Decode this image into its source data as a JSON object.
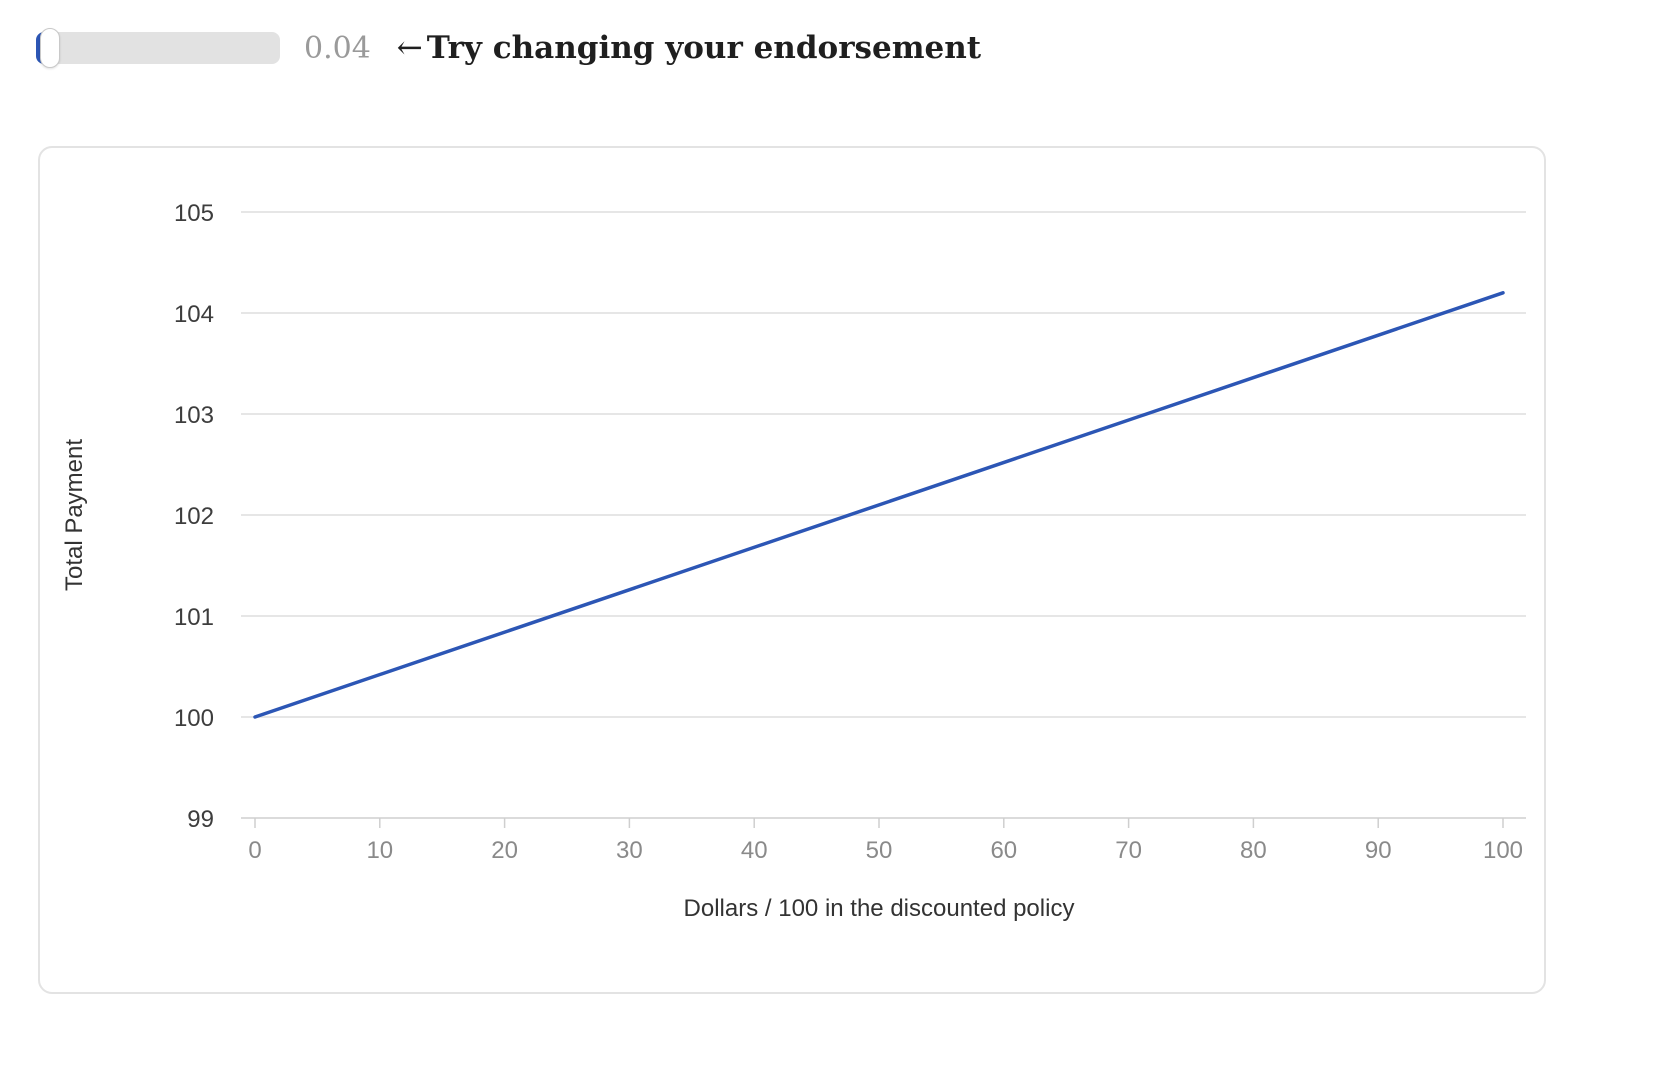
{
  "control": {
    "slider_value": 0.04,
    "slider_min": 0,
    "slider_max": 1,
    "value_label": "0.04",
    "arrow": "←",
    "hint": "Try changing your endorsement",
    "fill_color": "#2c56b5",
    "track_color": "#e2e2e2"
  },
  "chart_data": {
    "type": "line",
    "title": "",
    "xlabel": "Dollars / 100 in the discounted policy",
    "ylabel": "Total Payment",
    "xlim": [
      0,
      100
    ],
    "ylim": [
      99,
      105
    ],
    "x_ticks": [
      0,
      10,
      20,
      30,
      40,
      50,
      60,
      70,
      80,
      90,
      100
    ],
    "y_ticks": [
      99,
      100,
      101,
      102,
      103,
      104,
      105
    ],
    "grid": "horizontal",
    "line_color": "#2c56b5",
    "series": [
      {
        "x": [
          0,
          100
        ],
        "y": [
          100,
          104.2
        ]
      }
    ]
  }
}
